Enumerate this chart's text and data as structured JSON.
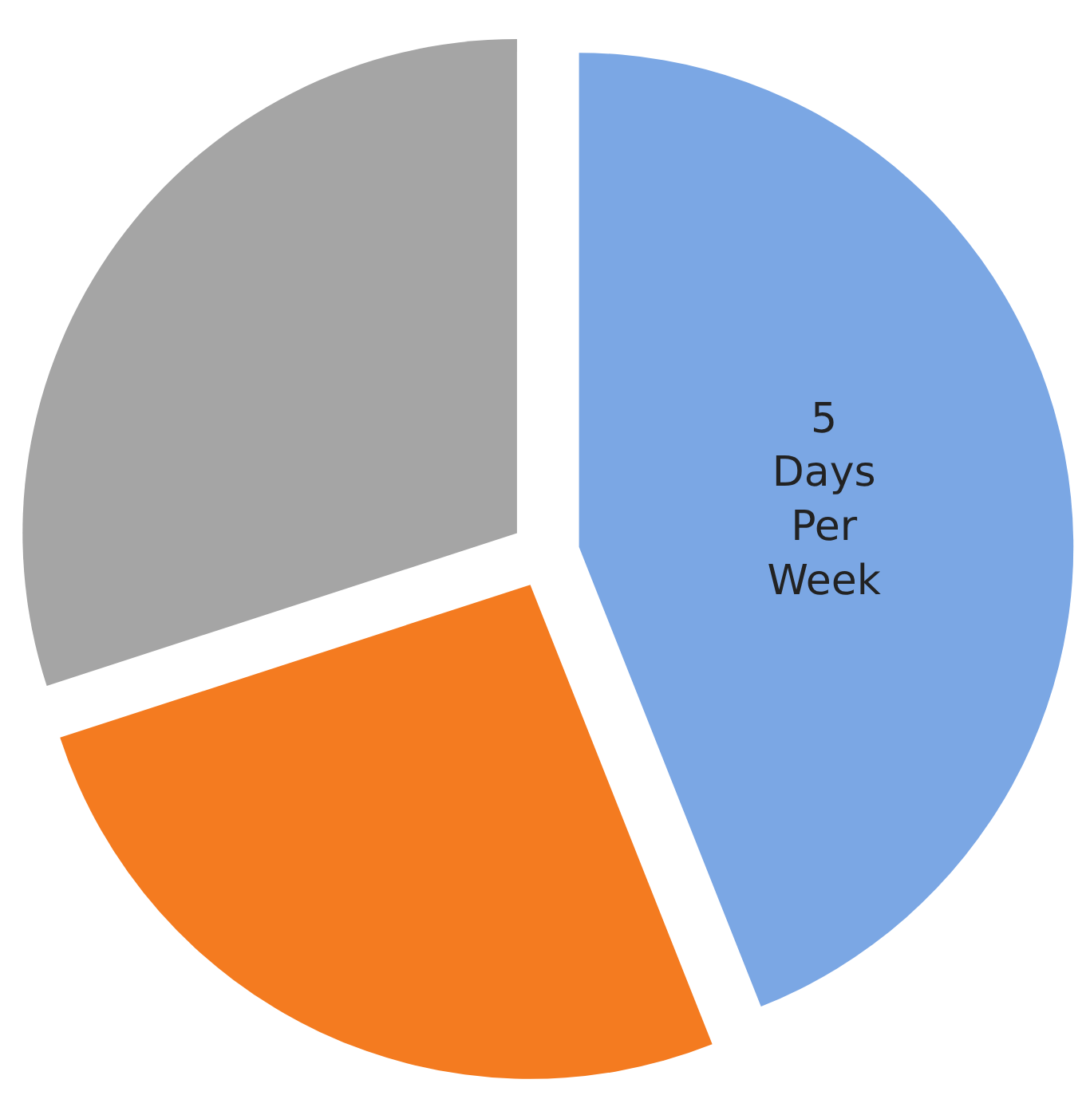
{
  "chart_data": {
    "type": "pie",
    "categories": [
      "5 Days Per Week",
      null,
      null
    ],
    "values": [
      44,
      26,
      30
    ],
    "colors": [
      "#7ba7e4",
      "#f47b20",
      "#a5a5a5"
    ],
    "legend": false
  }
}
